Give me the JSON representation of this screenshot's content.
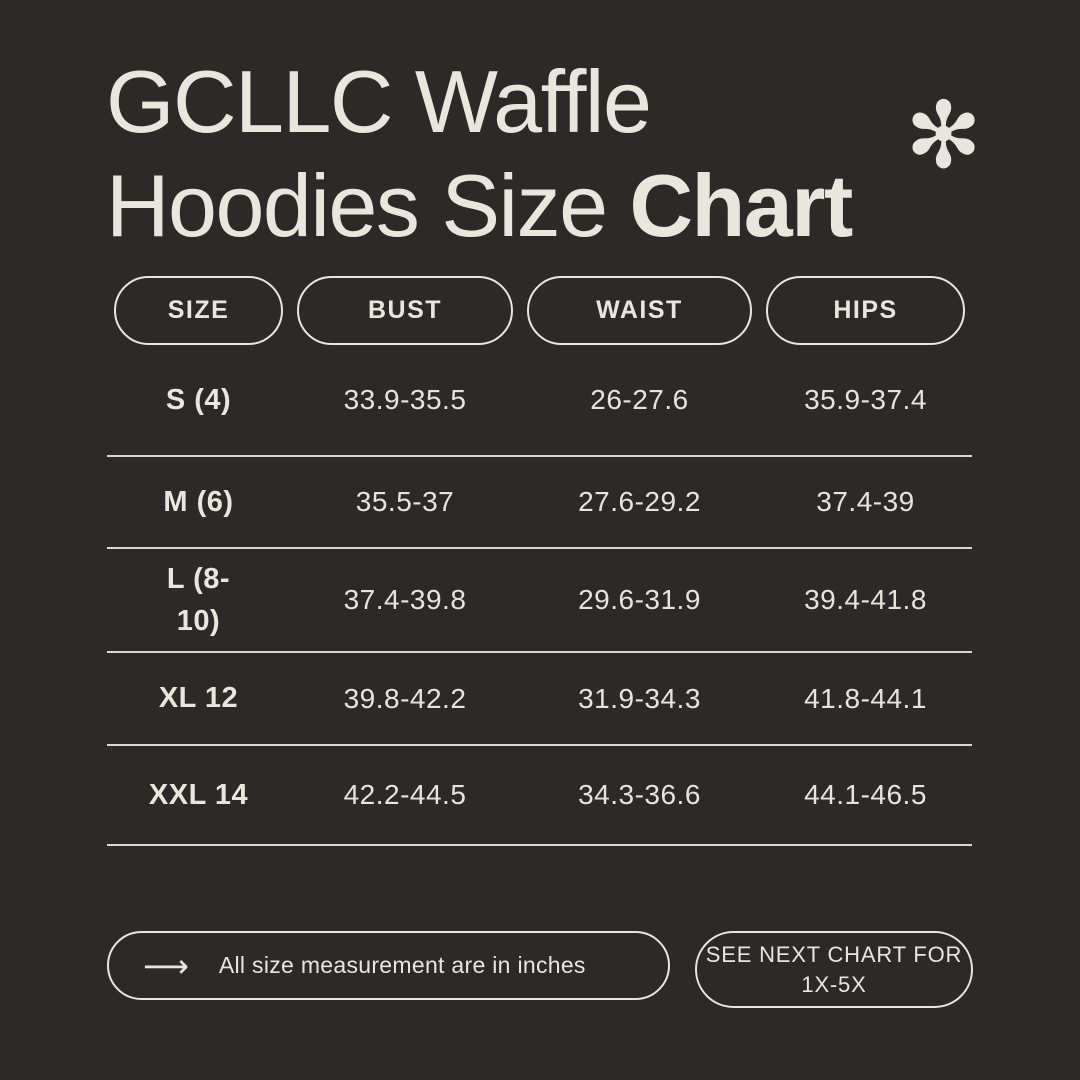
{
  "theme": {
    "background": "#2b2a28",
    "text_color": "#e9e6de",
    "divider_color": "#dbd8d0"
  },
  "title": {
    "line1": "GCLLC Waffle",
    "line2_regular": "Hoodies Size ",
    "line2_bold": "Chart",
    "asterisk_glyph": "✻"
  },
  "table": {
    "columns": [
      "SIZE",
      "BUST",
      "WAIST",
      "HIPS"
    ],
    "rows": [
      {
        "size": "S (4)",
        "bust": "33.9-35.5",
        "waist": "26-27.6",
        "hips": "35.9-37.4"
      },
      {
        "size": "M (6)",
        "bust": "35.5-37",
        "waist": "27.6-29.2",
        "hips": "37.4-39"
      },
      {
        "size": "L (8-10)",
        "bust": "37.4-39.8",
        "waist": "29.6-31.9",
        "hips": "39.4-41.8"
      },
      {
        "size": "XL 12",
        "bust": "39.8-42.2",
        "waist": "31.9-34.3",
        "hips": "41.8-44.1"
      },
      {
        "size": "XXL 14",
        "bust": "42.2-44.5",
        "waist": "34.3-36.6",
        "hips": "44.1-46.5"
      }
    ]
  },
  "footer": {
    "arrow_glyph": "⟶",
    "note": "All size measurement are in inches",
    "next_chart": {
      "line1": "SEE NEXT CHART FOR",
      "line2": "1X-5X"
    }
  },
  "chart_data": {
    "type": "table",
    "title": "GCLLC Waffle Hoodies Size Chart",
    "columns": [
      "SIZE",
      "BUST",
      "WAIST",
      "HIPS"
    ],
    "rows": [
      [
        "S (4)",
        "33.9-35.5",
        "26-27.6",
        "35.9-37.4"
      ],
      [
        "M (6)",
        "35.5-37",
        "27.6-29.2",
        "37.4-39"
      ],
      [
        "L (8-10)",
        "37.4-39.8",
        "29.6-31.9",
        "39.4-41.8"
      ],
      [
        "XL 12",
        "39.8-42.2",
        "31.9-34.3",
        "41.8-44.1"
      ],
      [
        "XXL 14",
        "42.2-44.5",
        "34.3-36.6",
        "44.1-46.5"
      ]
    ],
    "units": "inches",
    "notes": [
      "All size measurement are in inches",
      "SEE NEXT CHART FOR 1X-5X"
    ]
  }
}
